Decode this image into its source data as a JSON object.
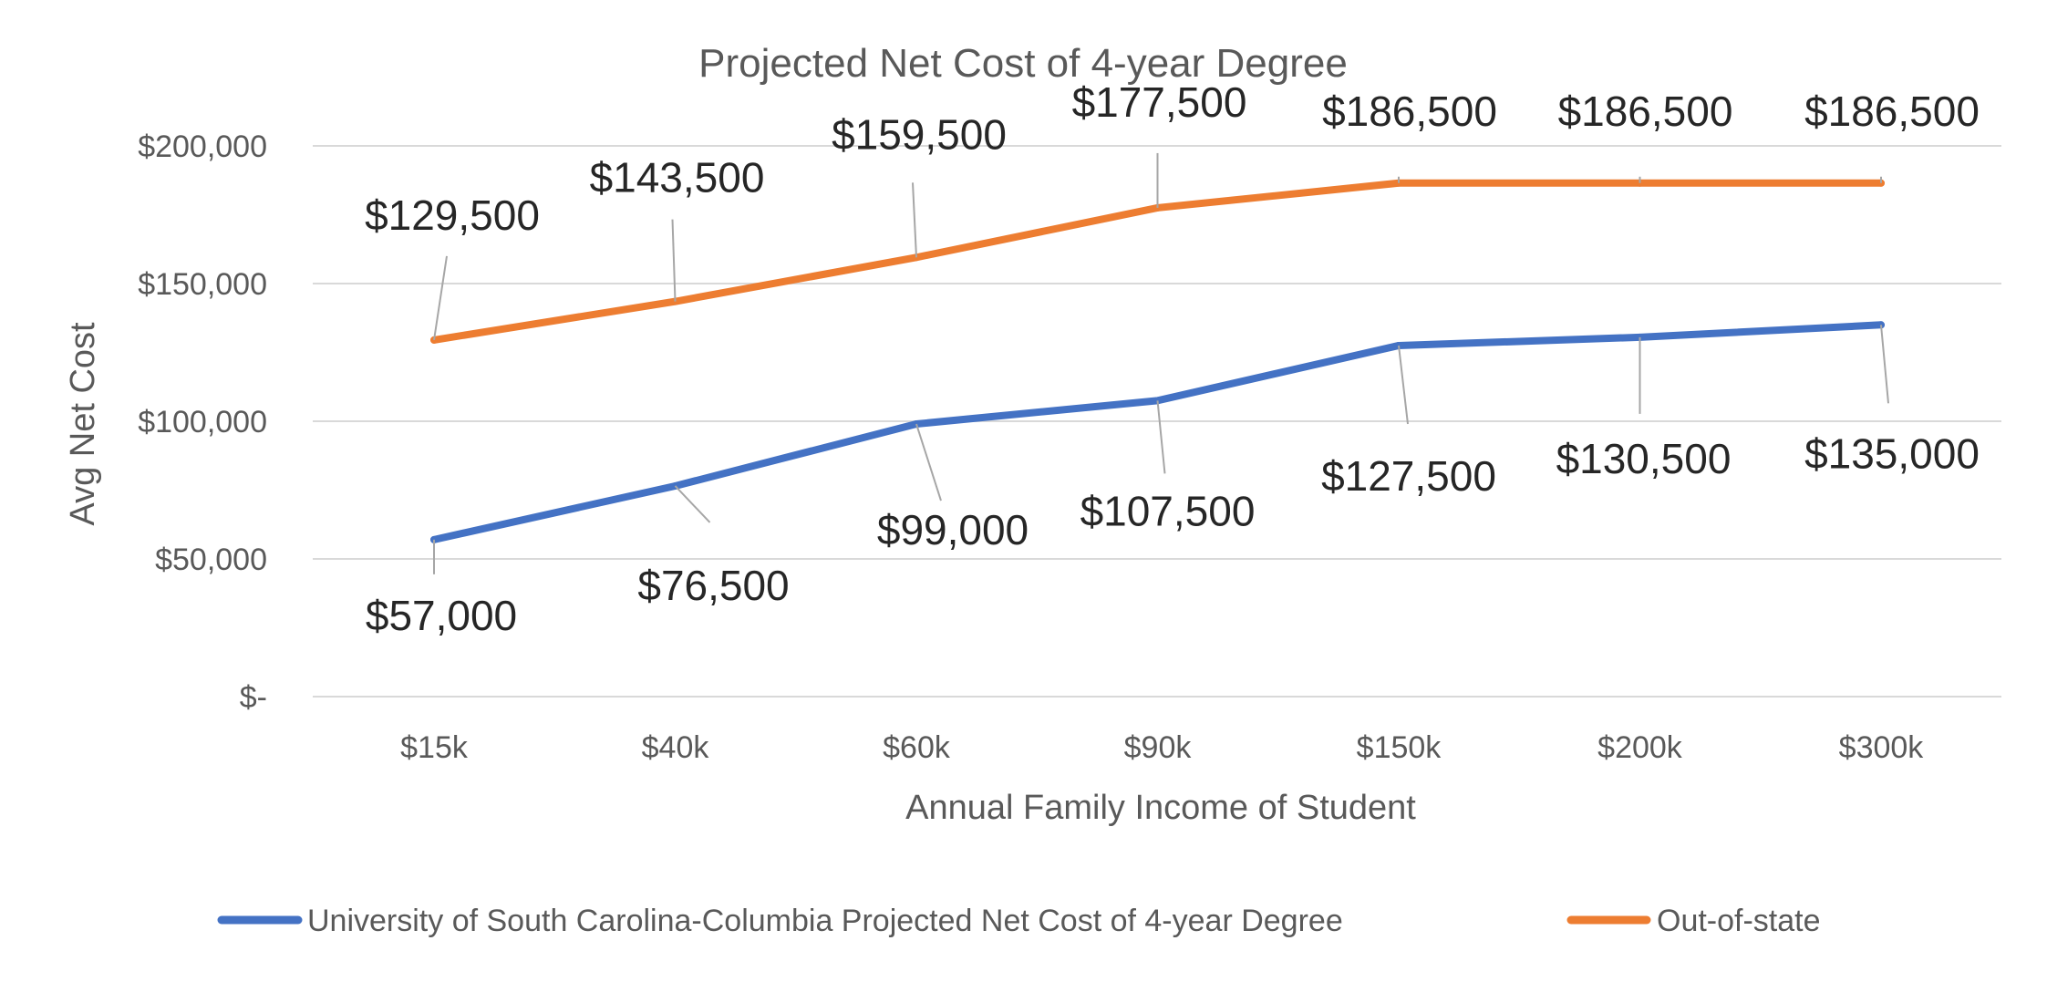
{
  "chart_data": {
    "type": "line",
    "title": "Projected Net Cost of 4-year Degree",
    "xlabel": "Annual Family Income of Student",
    "ylabel": "Avg Net Cost",
    "categories": [
      "$15k",
      "$40k",
      "$60k",
      "$90k",
      "$150k",
      "$200k",
      "$300k"
    ],
    "ylim": [
      0,
      200000
    ],
    "yticks": [
      0,
      50000,
      100000,
      150000,
      200000
    ],
    "ytick_labels": [
      "$-",
      "$50,000",
      "$100,000",
      "$150,000",
      "$200,000"
    ],
    "grid": true,
    "legend_position": "bottom",
    "series": [
      {
        "name": "University of South Carolina-Columbia Projected Net Cost of 4-year Degree",
        "color": "#4472C4",
        "values": [
          57000,
          76500,
          99000,
          107500,
          127500,
          130500,
          135000
        ],
        "labels": [
          "$57,000",
          "$76,500",
          "$99,000",
          "$107,500",
          "$127,500",
          "$130,500",
          "$135,000"
        ]
      },
      {
        "name": "Out-of-state",
        "color": "#ED7D31",
        "values": [
          129500,
          143500,
          159500,
          177500,
          186500,
          186500,
          186500
        ],
        "labels": [
          "$129,500",
          "$143,500",
          "$159,500",
          "$177,500",
          "$186,500",
          "$186,500",
          "$186,500"
        ]
      }
    ]
  }
}
